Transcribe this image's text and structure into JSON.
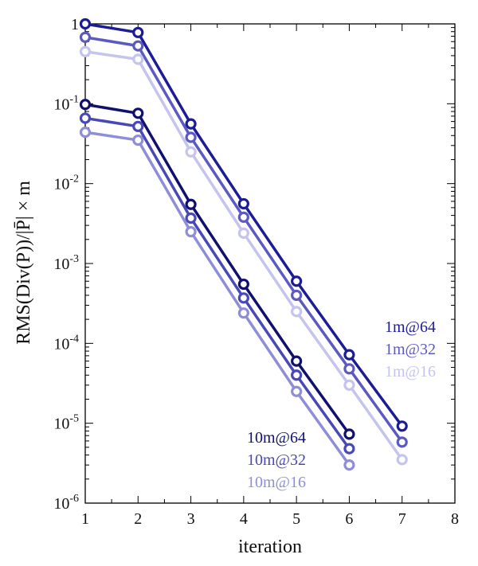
{
  "chart_data": {
    "type": "line",
    "title": "",
    "xlabel": "iteration",
    "ylabel": "RMS(Div(P))/|P̄| × m",
    "x_scale": "linear",
    "y_scale": "log",
    "xlim": [
      1,
      8
    ],
    "ylim": [
      1e-06,
      1
    ],
    "grid": false,
    "x_ticks": [
      1,
      2,
      3,
      4,
      5,
      6,
      7,
      8
    ],
    "y_tick_labels": [
      {
        "base": "10",
        "exp": "-6"
      },
      {
        "base": "10",
        "exp": "-5"
      },
      {
        "base": "10",
        "exp": "-4"
      },
      {
        "base": "10",
        "exp": "-3"
      },
      {
        "base": "10",
        "exp": "-2"
      },
      {
        "base": "10",
        "exp": "-1"
      },
      {
        "base": "1",
        "exp": ""
      }
    ],
    "legend_placement": "right (two groups: upper group near 1m lines, lower group near 10m lines)",
    "series": [
      {
        "name": "1m@64",
        "color": "#1c1c96",
        "x": [
          1,
          2,
          3,
          4,
          5,
          6,
          7
        ],
        "y": [
          1.0,
          0.78,
          0.056,
          0.0056,
          0.0006,
          7.2e-05,
          9.2e-06
        ]
      },
      {
        "name": "1m@32",
        "color": "#5a5ac2",
        "x": [
          1,
          2,
          3,
          4,
          5,
          6,
          7
        ],
        "y": [
          0.68,
          0.53,
          0.038,
          0.0038,
          0.0004,
          4.8e-05,
          5.8e-06
        ]
      },
      {
        "name": "1m@16",
        "color": "#c4c4ee",
        "x": [
          1,
          2,
          3,
          4,
          5,
          6,
          7
        ],
        "y": [
          0.45,
          0.36,
          0.025,
          0.0024,
          0.00025,
          3e-05,
          3.5e-06
        ]
      },
      {
        "name": "10m@64",
        "color": "#10106e",
        "x": [
          1,
          2,
          3,
          4,
          5,
          6
        ],
        "y": [
          0.098,
          0.076,
          0.0055,
          0.00055,
          6e-05,
          7.3e-06
        ]
      },
      {
        "name": "10m@32",
        "color": "#4848b8",
        "x": [
          1,
          2,
          3,
          4,
          5,
          6
        ],
        "y": [
          0.066,
          0.052,
          0.0037,
          0.00037,
          4e-05,
          4.8e-06
        ]
      },
      {
        "name": "10m@16",
        "color": "#8e8ed8",
        "x": [
          1,
          2,
          3,
          4,
          5,
          6
        ],
        "y": [
          0.044,
          0.035,
          0.0025,
          0.00024,
          2.5e-05,
          3e-06
        ]
      }
    ]
  }
}
